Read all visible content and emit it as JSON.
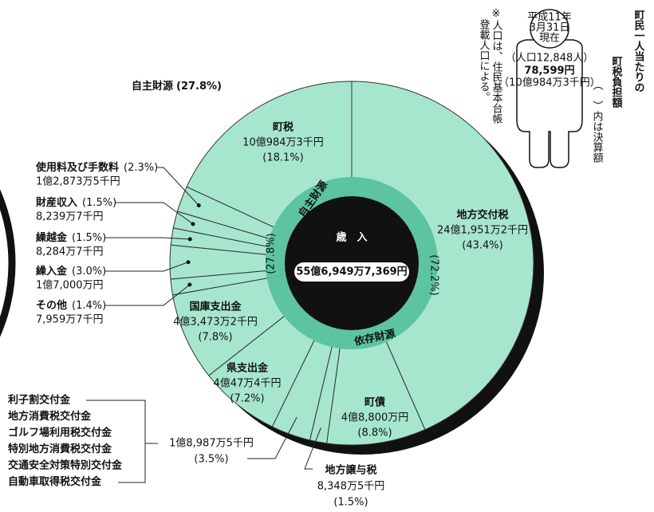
{
  "chart_data": {
    "type": "pie",
    "categories": [
      "地方交付税",
      "町債",
      "地方譲与税",
      null,
      "県支出金",
      "国庫支出金",
      "その他",
      "繰入金",
      "繰越金",
      "財産収入",
      "使用料及び手数料",
      "町税"
    ],
    "amounts": [
      "24億1,951万2千円",
      "4億8,800万円",
      "8,348万5千円",
      "1億8,987万5千円",
      "4億47万4千円",
      "4億3,473万2千円",
      "7,959万7千円",
      "1億7,000万円",
      "8,284万7千円",
      "8,239万7千円",
      "1億2,873万5千円",
      "10億984万3千円"
    ],
    "values": [
      43.4,
      8.8,
      1.5,
      3.5,
      7.2,
      7.8,
      1.4,
      3.0,
      1.5,
      1.5,
      2.3,
      18.1
    ],
    "value_labels": [
      "(43.4%)",
      "(8.8%)",
      "(1.5%)",
      "(3.5%)",
      "(7.2%)",
      "(7.8%)",
      "(1.4%)",
      "(3.0%)",
      "(1.5%)",
      "(1.5%)",
      "(2.3%)",
      "(18.1%)"
    ],
    "grouped_categories": [
      "利子割交付金",
      "地方消費税交付金",
      "ゴルフ場利用税交付金",
      "特別地方消費税交付金",
      "交通安全対策特別交付金",
      "自動車取得税交付金"
    ],
    "color": "#a6e6cd",
    "inner": {
      "categories": [
        "依存財源",
        "自主財源"
      ],
      "values": [
        72.2,
        27.8
      ],
      "value_labels": [
        "(72.2%)",
        "(27.8%)"
      ],
      "color": "#5cc3a3"
    },
    "center": {
      "title": "歳　入",
      "total": "55億6,949万7,369円"
    }
  },
  "side_panel": {
    "title": [
      "町民一人当たりの",
      "町税負担額"
    ],
    "subtitle": "（　）内は決算額",
    "note": [
      "※人口は、住民基本台帳",
      "登載人口による。"
    ],
    "figure": {
      "date": [
        "平成11年",
        "3月31日",
        "現在"
      ],
      "population": "（人口12,848人）",
      "per_capita": "78,599円",
      "total": "（10億984万3千円）"
    }
  }
}
